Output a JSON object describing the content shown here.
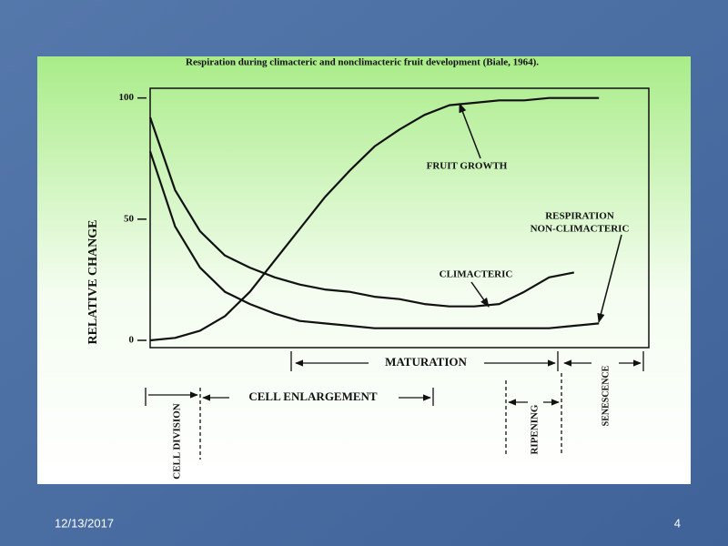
{
  "slide": {
    "date": "12/13/2017",
    "page": "4"
  },
  "chart_data": {
    "type": "line",
    "title": "Respiration during climacteric and nonclimacteric fruit development (Biale, 1964).",
    "y_label": "RELATIVE CHANGE",
    "categories": [
      null,
      null,
      null,
      null,
      null,
      null,
      null,
      null,
      null,
      null,
      null,
      null,
      null,
      null,
      null,
      null,
      null,
      null,
      null,
      null,
      null
    ],
    "series": [
      {
        "name": "FRUIT GROWTH",
        "color": "#111111",
        "values": [
          0,
          1,
          4,
          10,
          20,
          33,
          46,
          59,
          70,
          80,
          87,
          93,
          97,
          98,
          99,
          99,
          100,
          100,
          100,
          null,
          null
        ]
      },
      {
        "name": "CLIMACTERIC",
        "color": "#111111",
        "values": [
          92,
          62,
          45,
          35,
          30,
          26,
          23,
          21,
          20,
          18,
          17,
          15,
          14,
          14,
          15,
          20,
          26,
          28,
          null,
          null,
          null
        ]
      },
      {
        "name": "NON-CLIMACTERIC",
        "color": "#111111",
        "values": [
          78,
          47,
          30,
          20,
          15,
          11,
          8,
          7,
          6,
          5,
          5,
          5,
          5,
          5,
          5,
          5,
          5,
          6,
          7,
          null,
          null
        ]
      }
    ],
    "annotation": "RESPIRATION",
    "phases": [
      "MATURATION",
      "CELL ENLARGEMENT",
      "CELL DIVISION",
      "RIPENING",
      "SENESCENCE"
    ],
    "ylim": [
      -3,
      104
    ],
    "yticks": [
      0,
      50,
      100
    ]
  }
}
